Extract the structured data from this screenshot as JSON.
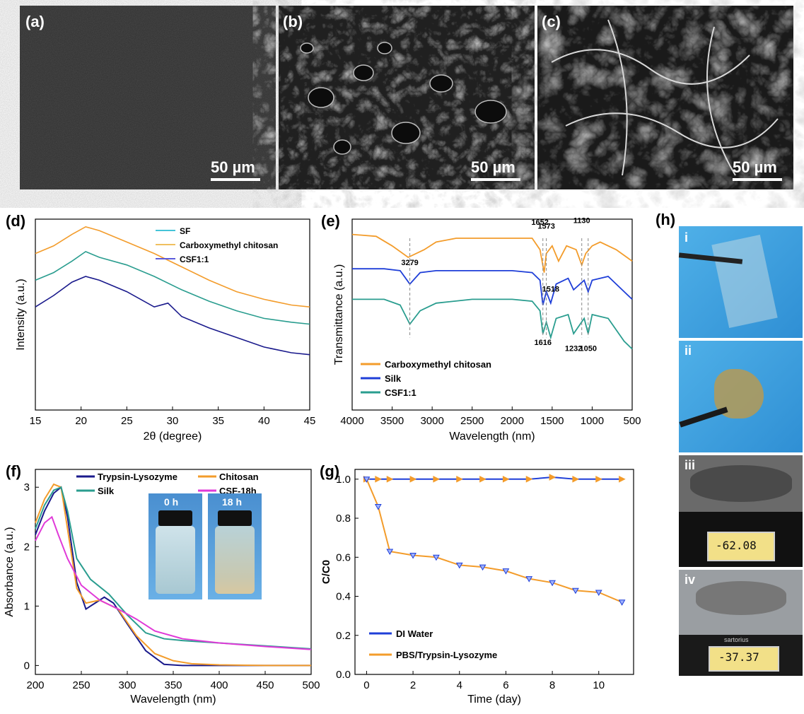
{
  "panels": {
    "a": {
      "label": "(a)",
      "scale": "50 µm"
    },
    "b": {
      "label": "(b)",
      "scale": "50 µm"
    },
    "c": {
      "label": "(c)",
      "scale": "50 µm"
    },
    "h": {
      "label": "(h)",
      "sub": [
        "i",
        "ii",
        "iii",
        "iv"
      ],
      "readouts": [
        "-62.08",
        "-37.37"
      ],
      "brand": "sartorius"
    },
    "f_inset": {
      "labels": [
        "0 h",
        "18 h"
      ]
    }
  },
  "colors": {
    "orange": "#f39c2b",
    "teal": "#2a9d8f",
    "navy": "#1a1a8c",
    "blue": "#1f3fd8",
    "magenta": "#e03ad8",
    "cyan": "#45c4d8",
    "lightorange": "#f0c060",
    "violet": "#5b5bdc"
  },
  "chart_data": [
    {
      "panel": "(d)",
      "type": "line",
      "xlabel": "2θ (degree)",
      "ylabel": "Intensity (a.u.)",
      "xlim": [
        15,
        45
      ],
      "xticks": [
        "15",
        "20",
        "25",
        "30",
        "35",
        "40",
        "45"
      ],
      "legend": [
        "SF",
        "Carboxymethyl chitosan",
        "CSF1:1"
      ],
      "legend_position": "top-right",
      "series": [
        {
          "name": "Carboxymethyl chitosan",
          "x": [
            15,
            17,
            19,
            20.5,
            22,
            25,
            28,
            31,
            34,
            37,
            40,
            43,
            45
          ],
          "y": [
            0.82,
            0.86,
            0.92,
            0.96,
            0.94,
            0.88,
            0.82,
            0.75,
            0.68,
            0.62,
            0.58,
            0.55,
            0.54
          ]
        },
        {
          "name": "SF",
          "x": [
            15,
            17,
            19,
            20.5,
            22,
            25,
            28,
            31,
            34,
            37,
            40,
            43,
            45
          ],
          "y": [
            0.68,
            0.72,
            0.78,
            0.83,
            0.8,
            0.76,
            0.7,
            0.63,
            0.57,
            0.52,
            0.48,
            0.46,
            0.45
          ]
        },
        {
          "name": "CSF1:1",
          "x": [
            15,
            17,
            19,
            20.5,
            22,
            25,
            28,
            29.5,
            31,
            34,
            37,
            40,
            43,
            45
          ],
          "y": [
            0.54,
            0.6,
            0.67,
            0.7,
            0.68,
            0.62,
            0.54,
            0.56,
            0.49,
            0.43,
            0.38,
            0.33,
            0.3,
            0.29
          ]
        }
      ]
    },
    {
      "panel": "(e)",
      "type": "line",
      "xlabel": "Wavelength (nm)",
      "ylabel": "Transmittance (a.u.)",
      "xlim": [
        4000,
        500
      ],
      "xticks": [
        "4000",
        "3500",
        "3000",
        "2500",
        "2000",
        "1500",
        "1000",
        "500"
      ],
      "legend": [
        "Carboxymethyl chitosan",
        "Silk",
        "CSF1:1"
      ],
      "legend_position": "bottom-left",
      "annotations": [
        "3279",
        "1652",
        "1573",
        "1130",
        "1518",
        "1616",
        "1232",
        "1050"
      ],
      "series": [
        {
          "name": "Carboxymethyl chitosan",
          "x": [
            4000,
            3700,
            3500,
            3300,
            3100,
            2950,
            2700,
            2000,
            1750,
            1652,
            1600,
            1573,
            1500,
            1420,
            1320,
            1200,
            1130,
            1080,
            1000,
            900,
            700,
            500
          ],
          "y": [
            0.92,
            0.91,
            0.86,
            0.8,
            0.84,
            0.88,
            0.9,
            0.9,
            0.9,
            0.84,
            0.72,
            0.82,
            0.86,
            0.78,
            0.86,
            0.84,
            0.76,
            0.82,
            0.86,
            0.88,
            0.84,
            0.78
          ]
        },
        {
          "name": "Silk",
          "x": [
            4000,
            3600,
            3400,
            3279,
            3150,
            2950,
            2500,
            2000,
            1750,
            1652,
            1616,
            1573,
            1518,
            1450,
            1300,
            1232,
            1100,
            1050,
            1000,
            800,
            600,
            500
          ],
          "y": [
            0.74,
            0.74,
            0.73,
            0.66,
            0.72,
            0.73,
            0.73,
            0.73,
            0.72,
            0.68,
            0.55,
            0.62,
            0.56,
            0.66,
            0.69,
            0.63,
            0.68,
            0.62,
            0.68,
            0.7,
            0.62,
            0.58
          ]
        },
        {
          "name": "CSF1:1",
          "x": [
            4000,
            3600,
            3400,
            3279,
            3150,
            2950,
            2500,
            2000,
            1750,
            1652,
            1616,
            1573,
            1518,
            1450,
            1300,
            1232,
            1100,
            1050,
            1000,
            800,
            600,
            500
          ],
          "y": [
            0.58,
            0.58,
            0.55,
            0.45,
            0.52,
            0.56,
            0.58,
            0.58,
            0.57,
            0.52,
            0.4,
            0.46,
            0.38,
            0.48,
            0.5,
            0.4,
            0.48,
            0.4,
            0.5,
            0.48,
            0.36,
            0.32
          ]
        }
      ]
    },
    {
      "panel": "(f)",
      "type": "line",
      "xlabel": "Wavelength (nm)",
      "ylabel": "Absorbance (a.u.)",
      "xlim": [
        200,
        500
      ],
      "ylim": [
        -0.15,
        3.3
      ],
      "xticks": [
        "200",
        "250",
        "300",
        "350",
        "400",
        "450",
        "500"
      ],
      "yticks": [
        "0",
        "1",
        "2",
        "3"
      ],
      "legend": [
        "Trypsin-Lysozyme",
        "Chitosan",
        "Silk",
        "CSF-18h"
      ],
      "legend_position": "top",
      "series": [
        {
          "name": "Trypsin-Lysozyme",
          "x": [
            200,
            210,
            220,
            228,
            235,
            245,
            255,
            265,
            275,
            285,
            300,
            320,
            340,
            360,
            400,
            450,
            500
          ],
          "y": [
            2.2,
            2.6,
            2.9,
            3.0,
            2.5,
            1.4,
            0.95,
            1.05,
            1.15,
            1.05,
            0.7,
            0.25,
            0.02,
            0.0,
            0.0,
            0.0,
            0.0
          ]
        },
        {
          "name": "Chitosan",
          "x": [
            200,
            210,
            220,
            228,
            235,
            245,
            255,
            270,
            290,
            310,
            330,
            350,
            370,
            400,
            450,
            500
          ],
          "y": [
            2.4,
            2.8,
            3.05,
            3.0,
            2.3,
            1.3,
            1.05,
            1.1,
            0.95,
            0.5,
            0.2,
            0.08,
            0.03,
            0.01,
            0.0,
            0.0
          ]
        },
        {
          "name": "Silk",
          "x": [
            200,
            210,
            220,
            228,
            235,
            245,
            260,
            280,
            300,
            320,
            340,
            360,
            400,
            450,
            500
          ],
          "y": [
            2.3,
            2.7,
            2.95,
            3.0,
            2.6,
            1.8,
            1.45,
            1.2,
            0.85,
            0.55,
            0.45,
            0.42,
            0.38,
            0.33,
            0.28
          ]
        },
        {
          "name": "CSF-18h",
          "x": [
            200,
            210,
            218,
            225,
            235,
            250,
            270,
            290,
            310,
            330,
            360,
            400,
            450,
            500
          ],
          "y": [
            2.1,
            2.4,
            2.5,
            2.2,
            1.8,
            1.35,
            1.1,
            0.95,
            0.78,
            0.58,
            0.45,
            0.38,
            0.32,
            0.27
          ]
        }
      ]
    },
    {
      "panel": "(g)",
      "type": "line",
      "xlabel": "Time (day)",
      "ylabel": "C/C0",
      "xlim": [
        -0.5,
        11.5
      ],
      "ylim": [
        0,
        1.05
      ],
      "xticks": [
        "0",
        "2",
        "4",
        "6",
        "8",
        "10"
      ],
      "yticks": [
        "0.0",
        "0.2",
        "0.4",
        "0.6",
        "0.8",
        "1.0"
      ],
      "legend": [
        "DI Water",
        "PBS/Trypsin-Lysozyme"
      ],
      "legend_position": "bottom-left",
      "series": [
        {
          "name": "DI Water",
          "x": [
            0,
            0.5,
            1,
            2,
            3,
            4,
            5,
            6,
            7,
            8,
            9,
            10,
            11
          ],
          "y": [
            1.0,
            1.0,
            1.0,
            1.0,
            1.0,
            1.0,
            1.0,
            1.0,
            1.0,
            1.01,
            1.0,
            1.0,
            1.0
          ]
        },
        {
          "name": "PBS/Trypsin-Lysozyme",
          "x": [
            0,
            0.5,
            1,
            2,
            3,
            4,
            5,
            6,
            7,
            8,
            9,
            10,
            11
          ],
          "y": [
            1.0,
            0.86,
            0.63,
            0.61,
            0.6,
            0.56,
            0.55,
            0.53,
            0.49,
            0.47,
            0.43,
            0.42,
            0.37
          ]
        }
      ]
    }
  ]
}
